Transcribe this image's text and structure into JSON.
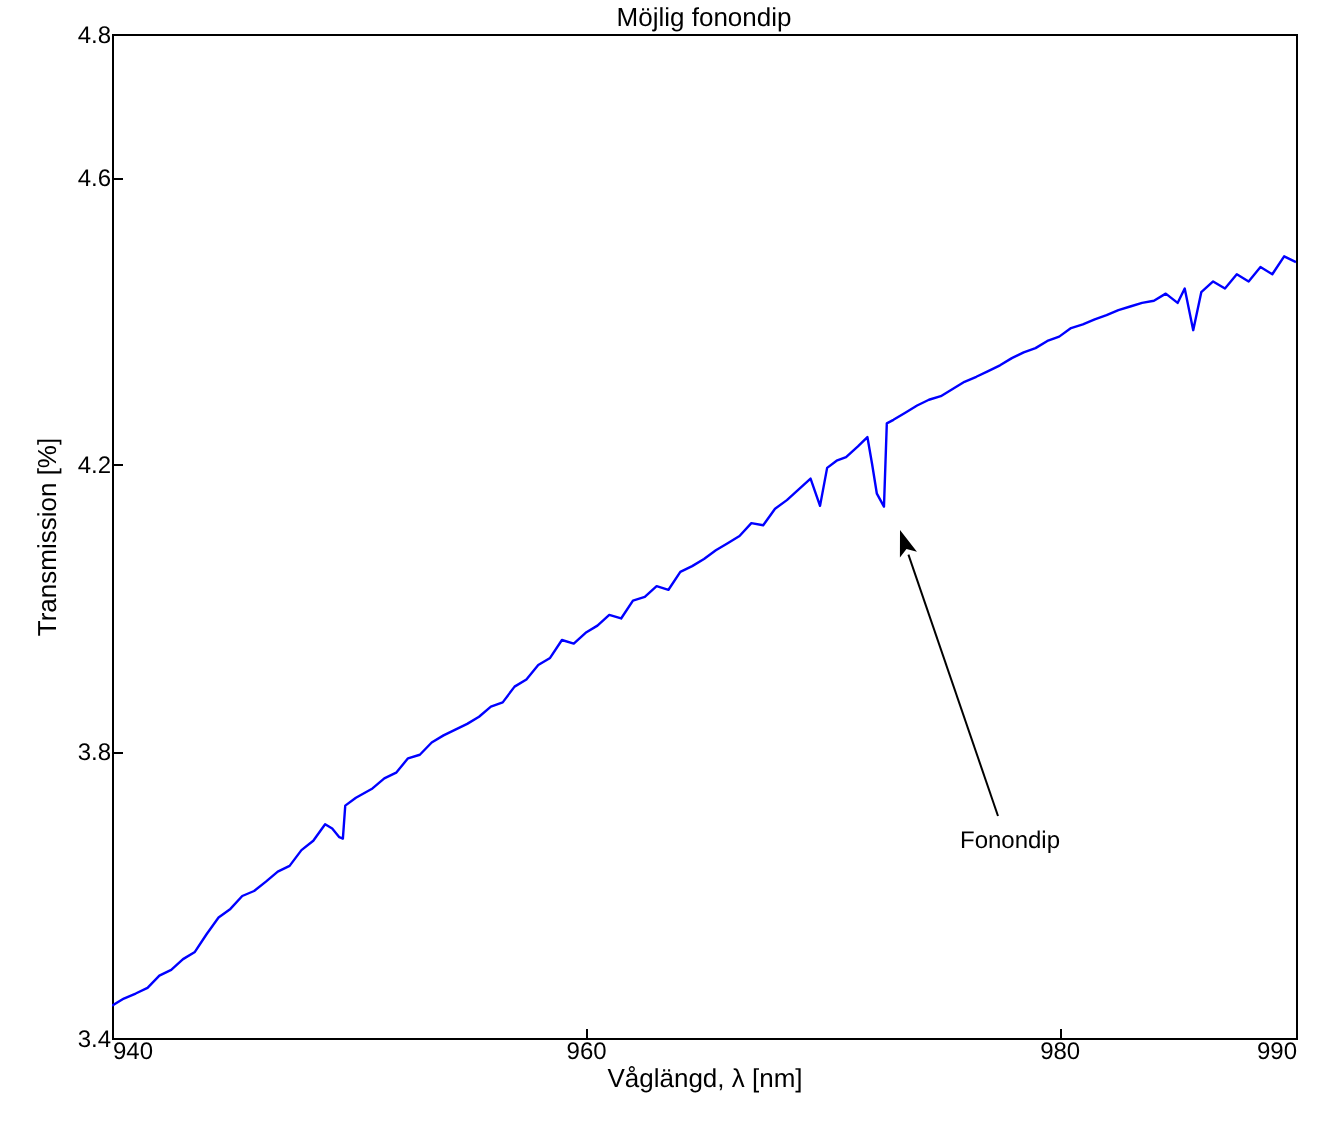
{
  "chart_data": {
    "type": "line",
    "title": "Möjlig fonondip",
    "xlabel": "Våglängd, λ [nm]",
    "ylabel": "Transmission [%]",
    "xlim": [
      940,
      990
    ],
    "xticks": [
      940,
      960,
      980,
      990
    ],
    "ylim": [
      3.4,
      4.8
    ],
    "yticks": [
      3.4,
      3.8,
      4.2,
      4.6,
      4.8
    ],
    "grid": false,
    "marker": "none",
    "line_style": "solid",
    "x": [
      940.0,
      940.5,
      941.0,
      941.5,
      942.0,
      942.5,
      943.0,
      943.5,
      944.0,
      944.5,
      945.0,
      945.5,
      946.0,
      946.5,
      947.0,
      947.5,
      948.0,
      948.5,
      949.0,
      949.3,
      949.6,
      949.75,
      949.85,
      950.3,
      951.0,
      951.5,
      952.0,
      952.5,
      953.0,
      953.5,
      954.0,
      954.5,
      955.0,
      955.5,
      956.0,
      956.5,
      957.0,
      957.5,
      958.0,
      958.5,
      959.0,
      959.5,
      960.0,
      960.5,
      961.0,
      961.5,
      962.0,
      962.5,
      963.0,
      963.5,
      964.0,
      964.5,
      965.0,
      965.5,
      966.0,
      966.5,
      967.0,
      967.5,
      968.0,
      968.5,
      969.0,
      969.5,
      969.9,
      970.2,
      970.6,
      971.0,
      971.5,
      971.9,
      972.1,
      972.3,
      972.6,
      972.72,
      973.0,
      973.5,
      974.0,
      974.5,
      975.0,
      975.5,
      976.0,
      976.5,
      977.0,
      977.5,
      978.0,
      978.5,
      979.0,
      979.5,
      980.0,
      980.5,
      981.0,
      981.5,
      982.0,
      982.5,
      983.0,
      983.5,
      984.0,
      984.5,
      985.0,
      985.3,
      985.66,
      986.0,
      986.5,
      987.0,
      987.5,
      988.0,
      988.5,
      989.0,
      989.5,
      990.0
    ],
    "series": [
      {
        "color": "#0000ff",
        "values": [
          3.445,
          3.455,
          3.462,
          3.47,
          3.487,
          3.495,
          3.51,
          3.52,
          3.545,
          3.568,
          3.58,
          3.598,
          3.605,
          3.618,
          3.632,
          3.64,
          3.662,
          3.675,
          3.698,
          3.692,
          3.68,
          3.678,
          3.724,
          3.735,
          3.748,
          3.762,
          3.77,
          3.79,
          3.795,
          3.812,
          3.822,
          3.83,
          3.838,
          3.848,
          3.862,
          3.868,
          3.89,
          3.9,
          3.92,
          3.93,
          3.955,
          3.95,
          3.965,
          3.975,
          3.99,
          3.985,
          4.01,
          4.015,
          4.03,
          4.025,
          4.05,
          4.058,
          4.068,
          4.08,
          4.09,
          4.1,
          4.118,
          4.115,
          4.138,
          4.15,
          4.165,
          4.18,
          4.142,
          4.195,
          4.205,
          4.21,
          4.225,
          4.238,
          4.2,
          4.159,
          4.141,
          4.257,
          4.262,
          4.272,
          4.282,
          4.29,
          4.295,
          4.305,
          4.315,
          4.322,
          4.33,
          4.338,
          4.348,
          4.356,
          4.362,
          4.372,
          4.378,
          4.39,
          4.395,
          4.402,
          4.408,
          4.415,
          4.42,
          4.425,
          4.428,
          4.438,
          4.425,
          4.445,
          4.387,
          4.44,
          4.455,
          4.445,
          4.465,
          4.455,
          4.475,
          4.465,
          4.49,
          4.482
        ]
      }
    ],
    "annotations": [
      "Fonondip"
    ]
  }
}
